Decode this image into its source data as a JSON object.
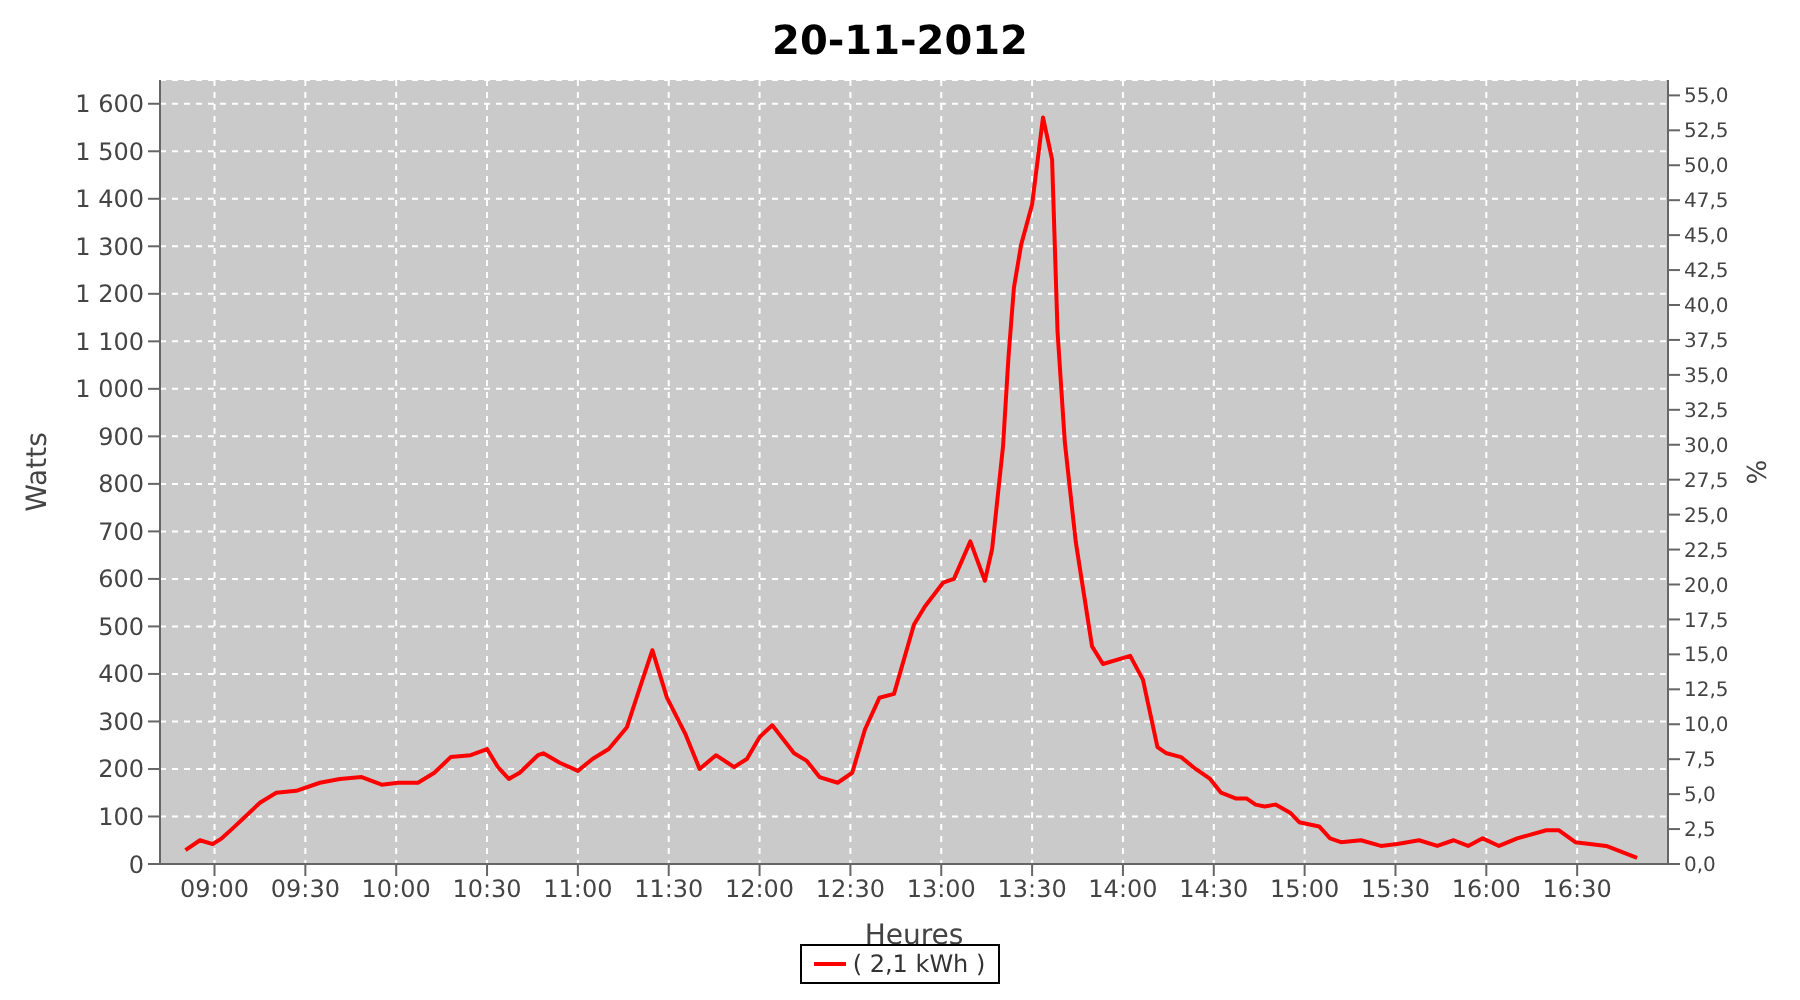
{
  "chart_data": {
    "type": "line",
    "title": "20-11-2012",
    "xlabel": "Heures",
    "ylabel": "Watts",
    "y2label": "%",
    "xlim": [
      8.7,
      17.0
    ],
    "xticks": [
      {
        "value": 9,
        "label": "09:00"
      },
      {
        "value": 9.5,
        "label": "09:30"
      },
      {
        "value": 10,
        "label": "10:00"
      },
      {
        "value": 10.5,
        "label": "10:30"
      },
      {
        "value": 11,
        "label": "11:00"
      },
      {
        "value": 11.5,
        "label": "11:30"
      },
      {
        "value": 12,
        "label": "12:00"
      },
      {
        "value": 12.5,
        "label": "12:30"
      },
      {
        "value": 13,
        "label": "13:00"
      },
      {
        "value": 13.5,
        "label": "13:30"
      },
      {
        "value": 14,
        "label": "14:00"
      },
      {
        "value": 14.5,
        "label": "14:30"
      },
      {
        "value": 15,
        "label": "15:00"
      },
      {
        "value": 15.5,
        "label": "15:30"
      },
      {
        "value": 16,
        "label": "16:00"
      },
      {
        "value": 16.5,
        "label": "16:30"
      }
    ],
    "ylim": [
      0,
      1650
    ],
    "yticks": [
      0,
      100,
      200,
      300,
      400,
      500,
      600,
      700,
      800,
      900,
      {
        "value": 1000,
        "label": "1 000"
      },
      {
        "value": 1100,
        "label": "1 100"
      },
      {
        "value": 1200,
        "label": "1 200"
      },
      {
        "value": 1300,
        "label": "1 300"
      },
      {
        "value": 1400,
        "label": "1 400"
      },
      {
        "value": 1500,
        "label": "1 500"
      },
      {
        "value": 1600,
        "label": "1 600"
      }
    ],
    "y2lim": [
      0,
      56.1
    ],
    "y2ticks": [
      {
        "value": 0,
        "label": "0,0"
      },
      {
        "value": 2.5,
        "label": "2,5"
      },
      {
        "value": 5,
        "label": "5,0"
      },
      {
        "value": 7.5,
        "label": "7,5"
      },
      {
        "value": 10,
        "label": "10,0"
      },
      {
        "value": 12.5,
        "label": "12,5"
      },
      {
        "value": 15,
        "label": "15,0"
      },
      {
        "value": 17.5,
        "label": "17,5"
      },
      {
        "value": 20,
        "label": "20,0"
      },
      {
        "value": 22.5,
        "label": "22,5"
      },
      {
        "value": 25,
        "label": "25,0"
      },
      {
        "value": 27.5,
        "label": "27,5"
      },
      {
        "value": 30,
        "label": "30,0"
      },
      {
        "value": 32.5,
        "label": "32,5"
      },
      {
        "value": 35,
        "label": "35,0"
      },
      {
        "value": 37.5,
        "label": "37,5"
      },
      {
        "value": 40,
        "label": "40,0"
      },
      {
        "value": 42.5,
        "label": "42,5"
      },
      {
        "value": 45,
        "label": "45,0"
      },
      {
        "value": 47.5,
        "label": "47,5"
      },
      {
        "value": 50,
        "label": "50,0"
      },
      {
        "value": 52.5,
        "label": "52,5"
      },
      {
        "value": 55,
        "label": "55,0"
      }
    ],
    "grid": true,
    "legend": "bottom",
    "marker": "none",
    "line_style": "solid",
    "x": [
      8.84,
      8.92,
      8.99,
      9.04,
      9.1,
      9.17,
      9.25,
      9.34,
      9.45,
      9.58,
      9.69,
      9.81,
      9.92,
      10.01,
      10.12,
      10.21,
      10.3,
      10.41,
      10.5,
      10.56,
      10.62,
      10.68,
      10.78,
      10.81,
      10.9,
      11.0,
      11.08,
      11.17,
      11.27,
      11.33,
      11.41,
      11.49,
      11.59,
      11.67,
      11.76,
      11.86,
      11.93,
      12.0,
      12.07,
      12.19,
      12.26,
      12.33,
      12.43,
      12.51,
      12.58,
      12.66,
      12.74,
      12.85,
      12.91,
      13.01,
      13.07,
      13.16,
      13.24,
      13.28,
      13.34,
      13.37,
      13.4,
      13.44,
      13.5,
      13.56,
      13.61,
      13.64,
      13.68,
      13.74,
      13.83,
      13.89,
      14.04,
      14.11,
      14.19,
      14.24,
      14.32,
      14.4,
      14.48,
      14.54,
      14.62,
      14.68,
      14.73,
      14.78,
      14.84,
      14.92,
      14.97,
      15.08,
      15.14,
      15.2,
      15.31,
      15.42,
      15.51,
      15.63,
      15.73,
      15.82,
      15.9,
      15.98,
      16.07,
      16.17,
      16.33,
      16.4,
      16.49,
      16.66,
      16.83
    ],
    "series": [
      {
        "name": "( 2,1 kWh )",
        "color": "#ff0000",
        "values": [
          29,
          50,
          42,
          54,
          75,
          100,
          129,
          150,
          154,
          171,
          179,
          183,
          167,
          171,
          171,
          192,
          225,
          229,
          242,
          204,
          179,
          192,
          229,
          233,
          213,
          196,
          221,
          242,
          288,
          358,
          450,
          350,
          275,
          200,
          229,
          204,
          221,
          267,
          292,
          233,
          217,
          183,
          171,
          192,
          283,
          350,
          358,
          504,
          542,
          592,
          600,
          679,
          596,
          663,
          879,
          1067,
          1213,
          1304,
          1388,
          1571,
          1483,
          1121,
          888,
          679,
          458,
          421,
          438,
          388,
          246,
          233,
          225,
          200,
          179,
          150,
          138,
          138,
          125,
          121,
          125,
          108,
          88,
          79,
          54,
          46,
          50,
          38,
          42,
          50,
          38,
          50,
          38,
          54,
          38,
          54,
          71,
          71,
          46,
          38,
          13
        ]
      }
    ]
  }
}
